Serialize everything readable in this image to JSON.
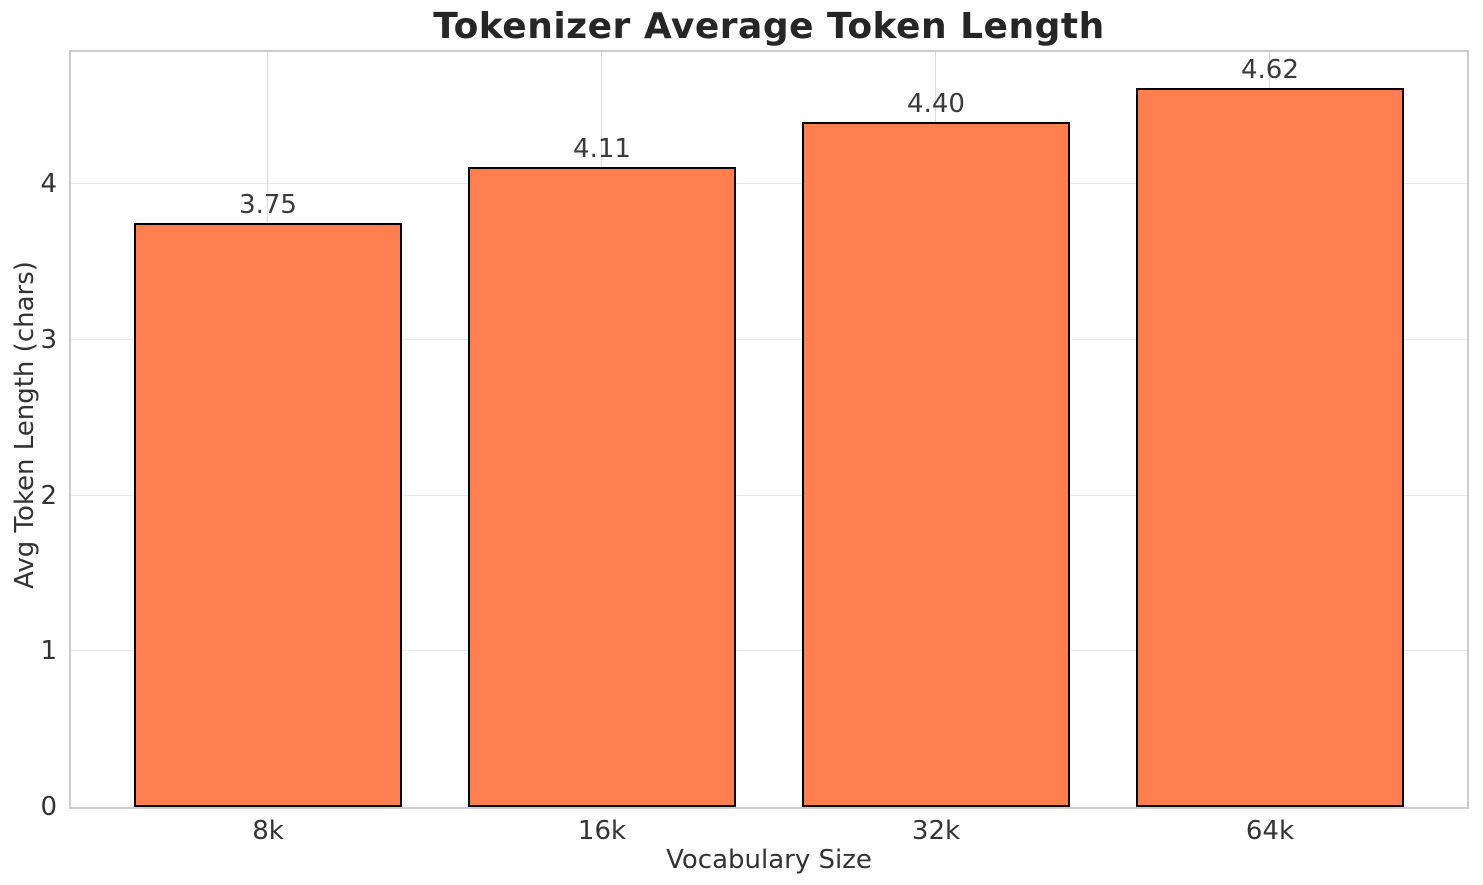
{
  "chart_data": {
    "type": "bar",
    "title": "Tokenizer Average Token Length",
    "xlabel": "Vocabulary Size",
    "ylabel": "Avg Token Length (chars)",
    "categories": [
      "8k",
      "16k",
      "32k",
      "64k"
    ],
    "values": [
      3.75,
      4.11,
      4.4,
      4.62
    ],
    "value_labels": [
      "3.75",
      "4.11",
      "4.40",
      "4.62"
    ],
    "yticks": [
      "0",
      "1",
      "2",
      "3",
      "4"
    ],
    "ytick_values": [
      0,
      1,
      2,
      3,
      4
    ],
    "ylim": [
      0,
      4.85
    ],
    "bar_color": "#FF7F50",
    "bar_edge_color": "#000000",
    "grid": true,
    "legend": null
  }
}
